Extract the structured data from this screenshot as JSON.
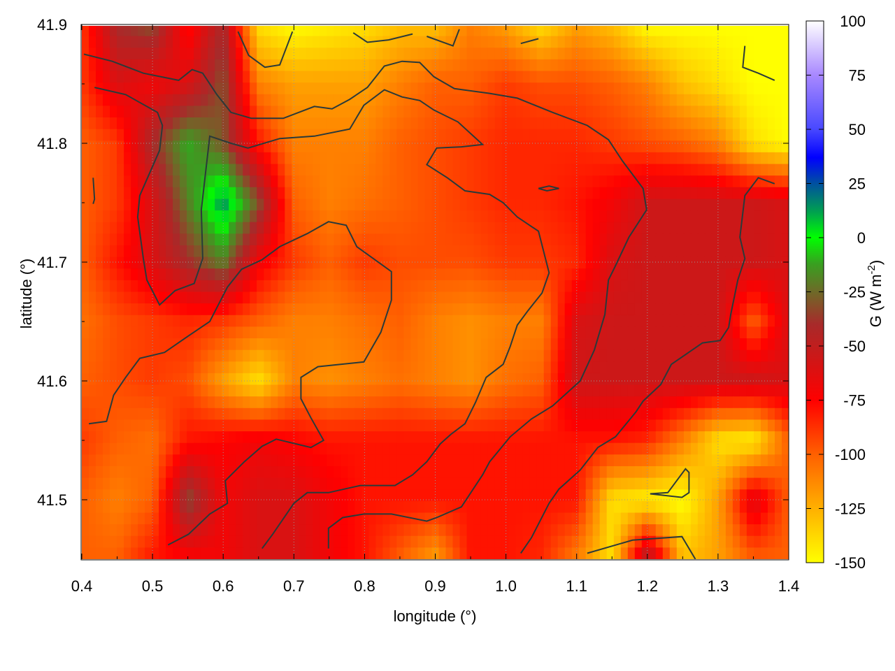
{
  "chart_data": {
    "type": "heatmap",
    "xlabel": "longitude (°)",
    "ylabel": "latitude (°)",
    "colorbar_label": "G (W m",
    "colorbar_label_sup": "-2",
    "colorbar_label_end": ")",
    "xlim": [
      0.4,
      1.4
    ],
    "ylim": [
      41.45,
      41.9
    ],
    "clim": [
      -150,
      100
    ],
    "grid": true,
    "x_ticks": [
      "0.4",
      "0.5",
      "0.6",
      "0.7",
      "0.8",
      "0.9",
      "1.0",
      "1.1",
      "1.2",
      "1.3",
      "1.4"
    ],
    "y_ticks": [
      "41.5",
      "41.6",
      "41.7",
      "41.8",
      "41.9"
    ],
    "colorbar_ticks": [
      "100",
      "75",
      "50",
      "25",
      "0",
      "-25",
      "-50",
      "-75",
      "-100",
      "-125",
      "-150"
    ],
    "colormap": [
      {
        "v": -150,
        "c": "#ffff00"
      },
      {
        "v": -125,
        "c": "#ffb000"
      },
      {
        "v": -100,
        "c": "#ff6000"
      },
      {
        "v": -75,
        "c": "#ff0000"
      },
      {
        "v": -55,
        "c": "#cc1818"
      },
      {
        "v": -40,
        "c": "#a82a2a"
      },
      {
        "v": -25,
        "c": "#6e6a28"
      },
      {
        "v": -12,
        "c": "#38a020"
      },
      {
        "v": 0,
        "c": "#00ff00"
      },
      {
        "v": 12,
        "c": "#00a050"
      },
      {
        "v": 25,
        "c": "#0050a0"
      },
      {
        "v": 37,
        "c": "#0000ff"
      },
      {
        "v": 50,
        "c": "#4848ff"
      },
      {
        "v": 75,
        "c": "#a888ff"
      },
      {
        "v": 100,
        "c": "#ffffff"
      }
    ],
    "grid_lon": [
      0.4,
      0.45,
      0.5,
      0.55,
      0.6,
      0.65,
      0.7,
      0.75,
      0.8,
      0.85,
      0.9,
      0.95,
      1.0,
      1.05,
      1.1,
      1.15,
      1.2,
      1.25,
      1.3,
      1.35,
      1.4
    ],
    "grid_lat": [
      41.9,
      41.85,
      41.8,
      41.75,
      41.7,
      41.65,
      41.6,
      41.55,
      41.5,
      41.45
    ],
    "values": [
      [
        -90,
        -40,
        -30,
        -80,
        -40,
        -140,
        -150,
        -145,
        -140,
        -130,
        -130,
        -110,
        -120,
        -140,
        -120,
        -130,
        -150,
        -150,
        -150,
        -150,
        -150
      ],
      [
        -90,
        -60,
        -70,
        -60,
        -30,
        -110,
        -120,
        -120,
        -120,
        -110,
        -100,
        -100,
        -90,
        -95,
        -95,
        -100,
        -110,
        -130,
        -140,
        -150,
        -150
      ],
      [
        -100,
        -90,
        -40,
        -10,
        -30,
        -80,
        -110,
        -110,
        -110,
        -100,
        -95,
        -90,
        -85,
        -85,
        -85,
        -90,
        -95,
        -100,
        -110,
        -140,
        -150
      ],
      [
        -100,
        -90,
        -60,
        -20,
        15,
        -30,
        -100,
        -110,
        -105,
        -100,
        -95,
        -90,
        -85,
        -85,
        -80,
        -70,
        -55,
        -55,
        -55,
        -55,
        -60
      ],
      [
        -100,
        -80,
        -60,
        -40,
        -20,
        -70,
        -90,
        -100,
        -90,
        -95,
        -95,
        -95,
        -90,
        -90,
        -85,
        -60,
        -55,
        -55,
        -55,
        -55,
        -60
      ],
      [
        -105,
        -95,
        -90,
        -85,
        -90,
        -100,
        -110,
        -110,
        -105,
        -100,
        -110,
        -115,
        -110,
        -110,
        -60,
        -55,
        -55,
        -55,
        -55,
        -100,
        -60
      ],
      [
        -100,
        -95,
        -90,
        -95,
        -120,
        -140,
        -110,
        -115,
        -110,
        -105,
        -110,
        -115,
        -105,
        -100,
        -55,
        -55,
        -55,
        -55,
        -55,
        -55,
        -60
      ],
      [
        -90,
        -100,
        -105,
        -80,
        -75,
        -70,
        -75,
        -80,
        -80,
        -80,
        -80,
        -80,
        -80,
        -80,
        -80,
        -80,
        -85,
        -110,
        -140,
        -145,
        -100
      ],
      [
        -100,
        -110,
        -100,
        -30,
        -70,
        -60,
        -60,
        -70,
        -80,
        -80,
        -80,
        -80,
        -80,
        -80,
        -80,
        -140,
        -145,
        -150,
        -120,
        -60,
        -100
      ],
      [
        -100,
        -100,
        -80,
        -75,
        -70,
        -60,
        -60,
        -70,
        -80,
        -100,
        -120,
        -80,
        -80,
        -85,
        -110,
        -140,
        -40,
        -130,
        -120,
        -100,
        -100
      ]
    ],
    "contour_color": "#2a3a3a",
    "contours": [
      [
        [
          0.403,
          41.875
        ],
        [
          0.443,
          41.869
        ],
        [
          0.487,
          41.859
        ],
        [
          0.537,
          41.853
        ],
        [
          0.556,
          41.862
        ],
        [
          0.571,
          41.859
        ],
        [
          0.591,
          41.841
        ],
        [
          0.611,
          41.826
        ],
        [
          0.64,
          41.821
        ],
        [
          0.685,
          41.821
        ],
        [
          0.729,
          41.831
        ],
        [
          0.754,
          41.829
        ],
        [
          0.779,
          41.837
        ],
        [
          0.804,
          41.847
        ],
        [
          0.828,
          41.865
        ],
        [
          0.853,
          41.869
        ],
        [
          0.878,
          41.868
        ],
        [
          0.898,
          41.856
        ],
        [
          0.927,
          41.846
        ],
        [
          0.977,
          41.842
        ],
        [
          1.016,
          41.838
        ],
        [
          1.066,
          41.826
        ],
        [
          1.115,
          41.815
        ],
        [
          1.145,
          41.803
        ],
        [
          1.165,
          41.785
        ],
        [
          1.194,
          41.762
        ],
        [
          1.199,
          41.744
        ],
        [
          1.174,
          41.721
        ],
        [
          1.155,
          41.697
        ],
        [
          1.145,
          41.685
        ],
        [
          1.14,
          41.656
        ],
        [
          1.125,
          41.626
        ],
        [
          1.105,
          41.6
        ],
        [
          1.066,
          41.579
        ],
        [
          1.036,
          41.568
        ],
        [
          1.006,
          41.553
        ],
        [
          0.977,
          41.532
        ],
        [
          0.967,
          41.521
        ],
        [
          0.947,
          41.503
        ],
        [
          0.937,
          41.494
        ],
        [
          0.902,
          41.485
        ],
        [
          0.888,
          41.482
        ],
        [
          0.838,
          41.488
        ],
        [
          0.799,
          41.488
        ],
        [
          0.769,
          41.485
        ],
        [
          0.749,
          41.476
        ],
        [
          0.749,
          41.459
        ]
      ],
      [
        [
          0.418,
          41.847
        ],
        [
          0.462,
          41.841
        ],
        [
          0.507,
          41.826
        ],
        [
          0.514,
          41.815
        ],
        [
          0.51,
          41.794
        ],
        [
          0.482,
          41.756
        ],
        [
          0.479,
          41.738
        ],
        [
          0.487,
          41.703
        ],
        [
          0.492,
          41.685
        ],
        [
          0.51,
          41.664
        ],
        [
          0.532,
          41.676
        ],
        [
          0.559,
          41.682
        ],
        [
          0.571,
          41.703
        ],
        [
          0.569,
          41.744
        ],
        [
          0.581,
          41.806
        ],
        [
          0.611,
          41.8
        ],
        [
          0.635,
          41.796
        ],
        [
          0.68,
          41.804
        ],
        [
          0.729,
          41.806
        ],
        [
          0.779,
          41.812
        ],
        [
          0.799,
          41.832
        ],
        [
          0.828,
          41.845
        ],
        [
          0.853,
          41.839
        ],
        [
          0.878,
          41.836
        ],
        [
          0.898,
          41.828
        ],
        [
          0.932,
          41.818
        ],
        [
          0.967,
          41.799
        ],
        [
          0.937,
          41.797
        ],
        [
          0.902,
          41.796
        ],
        [
          0.888,
          41.782
        ],
        [
          0.917,
          41.771
        ],
        [
          0.942,
          41.76
        ],
        [
          0.977,
          41.757
        ],
        [
          0.996,
          41.75
        ],
        [
          1.016,
          41.738
        ],
        [
          1.046,
          41.726
        ],
        [
          1.061,
          41.691
        ],
        [
          1.051,
          41.674
        ],
        [
          1.031,
          41.659
        ],
        [
          1.016,
          41.647
        ],
        [
          1.006,
          41.629
        ],
        [
          0.996,
          41.614
        ],
        [
          0.972,
          41.603
        ],
        [
          0.957,
          41.582
        ],
        [
          0.942,
          41.564
        ],
        [
          0.922,
          41.555
        ],
        [
          0.907,
          41.547
        ],
        [
          0.888,
          41.532
        ],
        [
          0.868,
          41.521
        ],
        [
          0.843,
          41.512
        ],
        [
          0.794,
          41.512
        ],
        [
          0.749,
          41.506
        ],
        [
          0.719,
          41.506
        ],
        [
          0.7,
          41.497
        ],
        [
          0.67,
          41.471
        ],
        [
          0.655,
          41.459
        ]
      ],
      [
        [
          0.522,
          41.462
        ],
        [
          0.551,
          41.471
        ],
        [
          0.581,
          41.488
        ],
        [
          0.606,
          41.497
        ],
        [
          0.603,
          41.516
        ],
        [
          0.63,
          41.532
        ],
        [
          0.655,
          41.545
        ],
        [
          0.675,
          41.551
        ],
        [
          0.724,
          41.544
        ],
        [
          0.742,
          41.55
        ],
        [
          0.724,
          41.569
        ],
        [
          0.71,
          41.585
        ],
        [
          0.71,
          41.603
        ],
        [
          0.734,
          41.612
        ],
        [
          0.799,
          41.616
        ],
        [
          0.823,
          41.641
        ],
        [
          0.838,
          41.668
        ],
        [
          0.838,
          41.692
        ],
        [
          0.789,
          41.713
        ],
        [
          0.774,
          41.731
        ],
        [
          0.749,
          41.734
        ],
        [
          0.719,
          41.724
        ],
        [
          0.68,
          41.713
        ],
        [
          0.655,
          41.702
        ],
        [
          0.626,
          41.694
        ],
        [
          0.606,
          41.679
        ],
        [
          0.581,
          41.65
        ],
        [
          0.551,
          41.638
        ],
        [
          0.517,
          41.624
        ],
        [
          0.482,
          41.619
        ],
        [
          0.462,
          41.603
        ],
        [
          0.445,
          41.588
        ],
        [
          0.435,
          41.566
        ],
        [
          0.41,
          41.564
        ]
      ],
      [
        [
          1.021,
          41.455
        ],
        [
          1.036,
          41.468
        ],
        [
          1.061,
          41.497
        ],
        [
          1.075,
          41.509
        ],
        [
          1.105,
          41.525
        ],
        [
          1.13,
          41.544
        ],
        [
          1.155,
          41.553
        ],
        [
          1.184,
          41.574
        ],
        [
          1.194,
          41.583
        ],
        [
          1.219,
          41.597
        ],
        [
          1.234,
          41.614
        ],
        [
          1.278,
          41.632
        ],
        [
          1.303,
          41.634
        ],
        [
          1.315,
          41.645
        ],
        [
          1.318,
          41.656
        ],
        [
          1.328,
          41.685
        ],
        [
          1.338,
          41.703
        ],
        [
          1.331,
          41.721
        ],
        [
          1.338,
          41.756
        ],
        [
          1.357,
          41.771
        ],
        [
          1.38,
          41.766
        ]
      ],
      [
        [
          1.115,
          41.455
        ],
        [
          1.179,
          41.466
        ],
        [
          1.249,
          41.469
        ],
        [
          1.268,
          41.45
        ]
      ],
      [
        [
          1.204,
          41.505
        ],
        [
          1.229,
          41.506
        ],
        [
          1.254,
          41.526
        ],
        [
          1.259,
          41.523
        ],
        [
          1.259,
          41.506
        ],
        [
          1.249,
          41.502
        ],
        [
          1.204,
          41.505
        ]
      ],
      [
        [
          0.621,
          41.894
        ],
        [
          0.636,
          41.874
        ],
        [
          0.659,
          41.864
        ],
        [
          0.68,
          41.866
        ],
        [
          0.698,
          41.894
        ]
      ],
      [
        [
          0.784,
          41.893
        ],
        [
          0.804,
          41.885
        ],
        [
          0.834,
          41.887
        ],
        [
          0.868,
          41.892
        ]
      ],
      [
        [
          0.888,
          41.89
        ],
        [
          0.925,
          41.882
        ],
        [
          0.934,
          41.896
        ]
      ],
      [
        [
          1.021,
          41.884
        ],
        [
          1.046,
          41.888
        ]
      ],
      [
        [
          1.338,
          41.882
        ],
        [
          1.335,
          41.864
        ],
        [
          1.357,
          41.859
        ],
        [
          1.38,
          41.853
        ]
      ],
      [
        [
          1.046,
          41.762
        ],
        [
          1.061,
          41.764
        ],
        [
          1.075,
          41.762
        ],
        [
          1.058,
          41.76
        ],
        [
          1.046,
          41.762
        ]
      ],
      [
        [
          0.416,
          41.771
        ],
        [
          0.418,
          41.753
        ],
        [
          0.416,
          41.749
        ]
      ]
    ]
  }
}
